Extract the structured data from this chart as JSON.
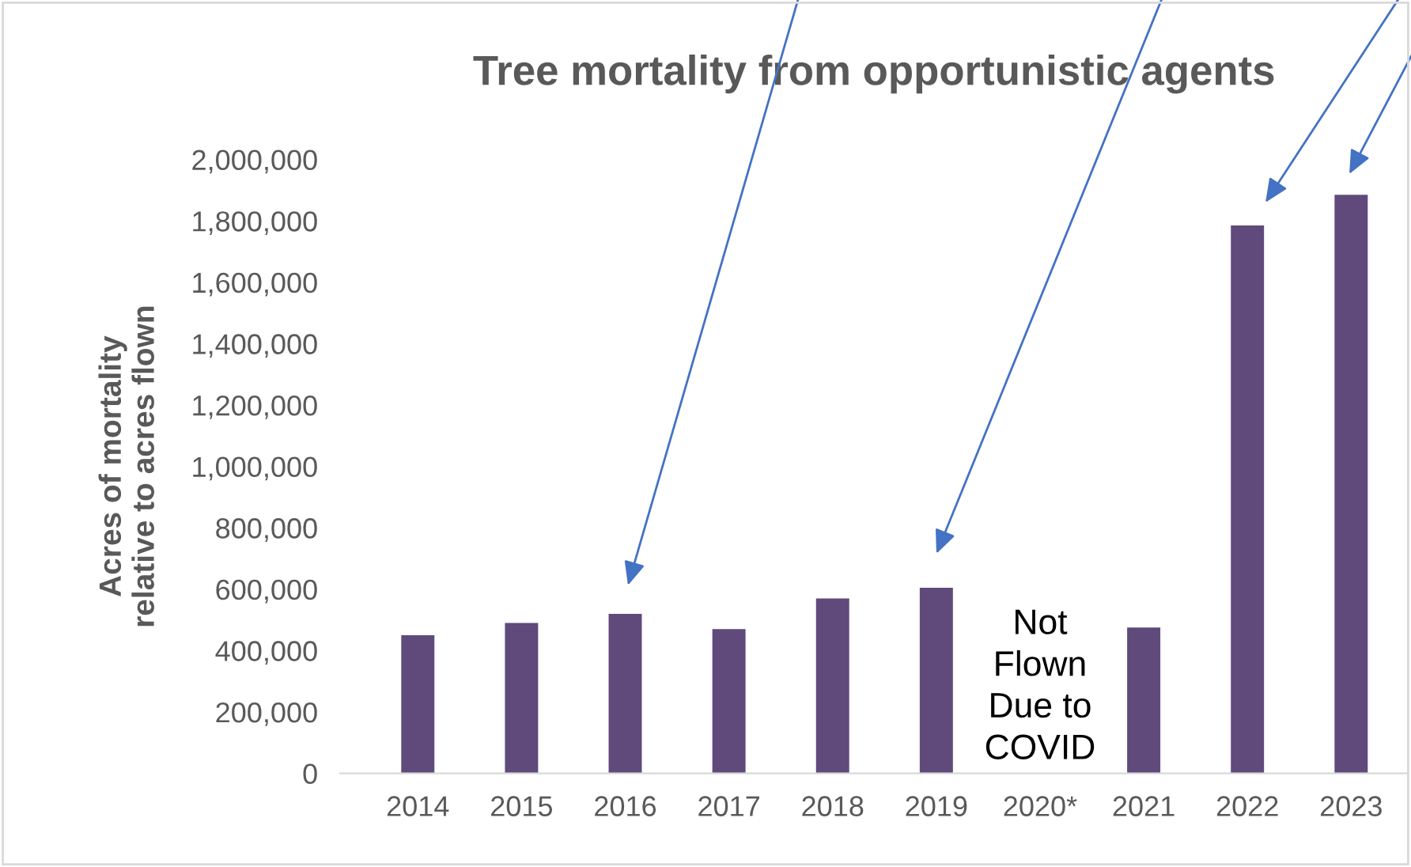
{
  "chart_data": {
    "type": "bar",
    "title": "Tree mortality from opportunistic agents",
    "ylabel": "Acres of mortality\nrelative to acres flown",
    "categories": [
      "2014",
      "2015",
      "2016",
      "2017",
      "2018",
      "2019",
      "2020*",
      "2021",
      "2022",
      "2023"
    ],
    "values": [
      450000,
      490000,
      520000,
      470000,
      570000,
      605000,
      null,
      475000,
      1785000,
      1885000
    ],
    "color": "#604a7b",
    "ylim": [
      0,
      2000000
    ],
    "yticks": [
      {
        "value": 0,
        "label": "0"
      },
      {
        "value": 200000,
        "label": "200,000"
      },
      {
        "value": 400000,
        "label": "400,000"
      },
      {
        "value": 600000,
        "label": "600,000"
      },
      {
        "value": 800000,
        "label": "800,000"
      },
      {
        "value": 1000000,
        "label": "1,000,000"
      },
      {
        "value": 1200000,
        "label": "1,200,000"
      },
      {
        "value": 1400000,
        "label": "1,400,000"
      },
      {
        "value": 1600000,
        "label": "1,600,000"
      },
      {
        "value": 1800000,
        "label": "1,800,000"
      },
      {
        "value": 2000000,
        "label": "2,000,000"
      }
    ],
    "grid": false,
    "annotations": [
      "Not\nFlown\nDue to\nCOVID"
    ]
  }
}
